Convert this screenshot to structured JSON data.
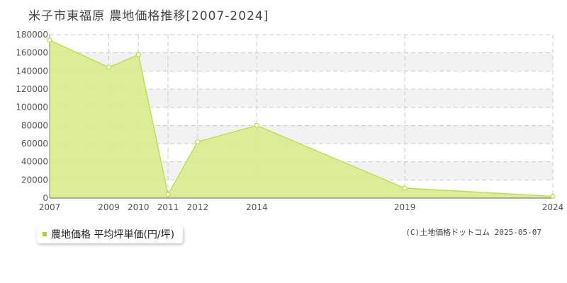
{
  "title": "米子市東福原  農地価格推移[2007-2024]",
  "legend": {
    "label": "農地価格 平均坪単価(円/坪)"
  },
  "copyright": "(C)土地価格ドットコム 2025-05-07",
  "colors": {
    "fill": "#d9ec90",
    "line": "#b5dd3a",
    "swatch": "#a8d42a",
    "grid": "#cccccc",
    "band": "#f2f2f2"
  },
  "chart_data": {
    "type": "area",
    "x": [
      "2007",
      "2009",
      "2010",
      "2011",
      "2012",
      "2014",
      "2019",
      "2024"
    ],
    "series": [
      {
        "name": "農地価格 平均坪単価(円/坪)",
        "values": [
          174000,
          144000,
          158000,
          4000,
          62000,
          80000,
          11000,
          2000
        ]
      }
    ],
    "yticks": [
      "0",
      "20000",
      "40000",
      "60000",
      "80000",
      "100000",
      "120000",
      "140000",
      "160000",
      "180000"
    ],
    "ylim": [
      0,
      180000
    ],
    "grid": true,
    "legend_position": "bottom-left"
  }
}
